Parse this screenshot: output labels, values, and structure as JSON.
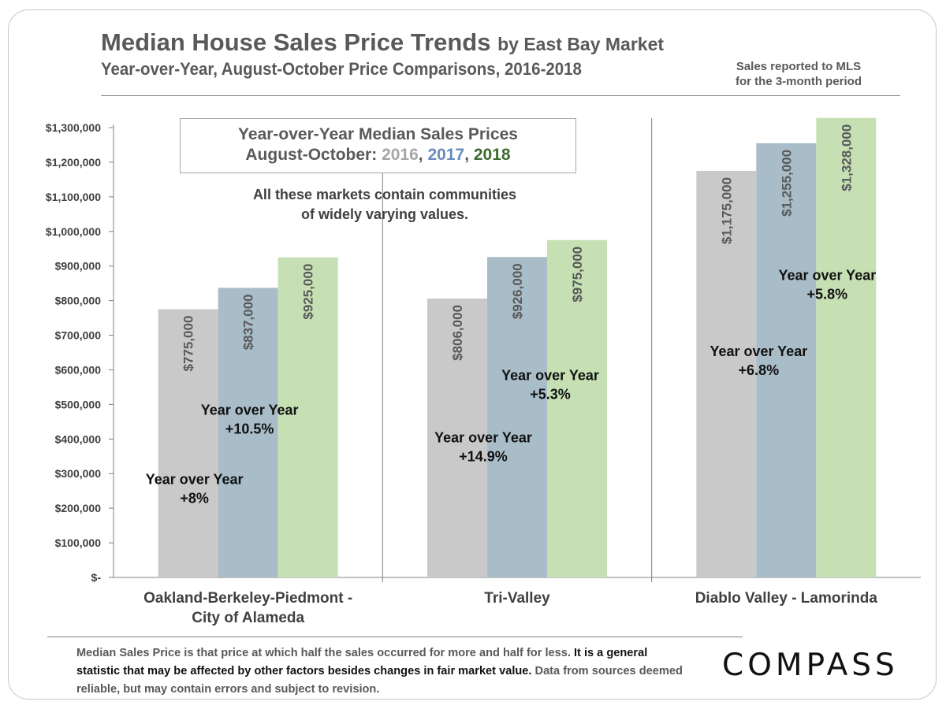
{
  "header": {
    "title_main": "Median House Sales Price Trends",
    "title_suffix": "by East Bay Market",
    "subtitle": "Year-over-Year, August-October Price Comparisons, 2016-2018",
    "note_line1": "Sales reported to MLS",
    "note_line2": "for the 3-month period"
  },
  "legend": {
    "line1": "Year-over-Year Median Sales Prices",
    "line2_prefix": "August-October:",
    "y2016": "2016",
    "y2017": "2017",
    "y2018": "2018",
    "sep": ","
  },
  "chart_note": {
    "line1": "All these markets contain communities",
    "line2": "of widely varying values."
  },
  "chart_data": {
    "type": "bar",
    "categories": [
      "Oakland-Berkeley-Piedmont - City of Alameda",
      "Tri-Valley",
      "Diablo Valley - Lamorinda"
    ],
    "category_lines": [
      [
        "Oakland-Berkeley-Piedmont -",
        "City of Alameda"
      ],
      [
        "Tri-Valley"
      ],
      [
        "Diablo Valley - Lamorinda"
      ]
    ],
    "series": [
      {
        "name": "2016",
        "color": "#c9c9c9",
        "values": [
          775000,
          806000,
          1175000
        ],
        "labels": [
          "$775,000",
          "$806,000",
          "$1,175,000"
        ]
      },
      {
        "name": "2017",
        "color": "#a9bdc8",
        "values": [
          837000,
          926000,
          1255000
        ],
        "labels": [
          "$837,000",
          "$926,000",
          "$1,255,000"
        ]
      },
      {
        "name": "2018",
        "color": "#c6e0b4",
        "values": [
          925000,
          975000,
          1328000
        ],
        "labels": [
          "$925,000",
          "$975,000",
          "$1,328,000"
        ]
      }
    ],
    "ylim": [
      0,
      1300000
    ],
    "y_ticks": [
      0,
      100000,
      200000,
      300000,
      400000,
      500000,
      600000,
      700000,
      800000,
      900000,
      1000000,
      1100000,
      1200000,
      1300000
    ],
    "y_tick_labels": [
      "$-",
      "$100,000",
      "$200,000",
      "$300,000",
      "$400,000",
      "$500,000",
      "$600,000",
      "$700,000",
      "$800,000",
      "$900,000",
      "$1,000,000",
      "$1,100,000",
      "$1,200,000",
      "$1,300,000"
    ],
    "annotations": [
      {
        "line1": "Year over Year",
        "line2": "+8%",
        "category": 0,
        "value": 270000,
        "offset": -68
      },
      {
        "line1": "Year over Year",
        "line2": "+10.5%",
        "category": 0,
        "value": 470000,
        "offset": 2
      },
      {
        "line1": "Year over Year",
        "line2": "+14.9%",
        "category": 1,
        "value": 390000,
        "offset": -43
      },
      {
        "line1": "Year over Year",
        "line2": "+5.3%",
        "category": 1,
        "value": 570000,
        "offset": 42
      },
      {
        "line1": "Year over Year",
        "line2": "+6.8%",
        "category": 2,
        "value": 640000,
        "offset": -35
      },
      {
        "line1": "Year over Year",
        "line2": "+5.8%",
        "category": 2,
        "value": 860000,
        "offset": 52
      }
    ],
    "grid": false,
    "legend": "top-left"
  },
  "footer": {
    "part1": "Median Sales Price is that price at which half the sales occurred for more and half for less.",
    "part2": "It is a general statistic that may be affected by other factors besides changes in fair market value.",
    "part3": "Data from sources  deemed reliable, but may contain errors and subject to revision."
  },
  "logo": "COMPASS"
}
